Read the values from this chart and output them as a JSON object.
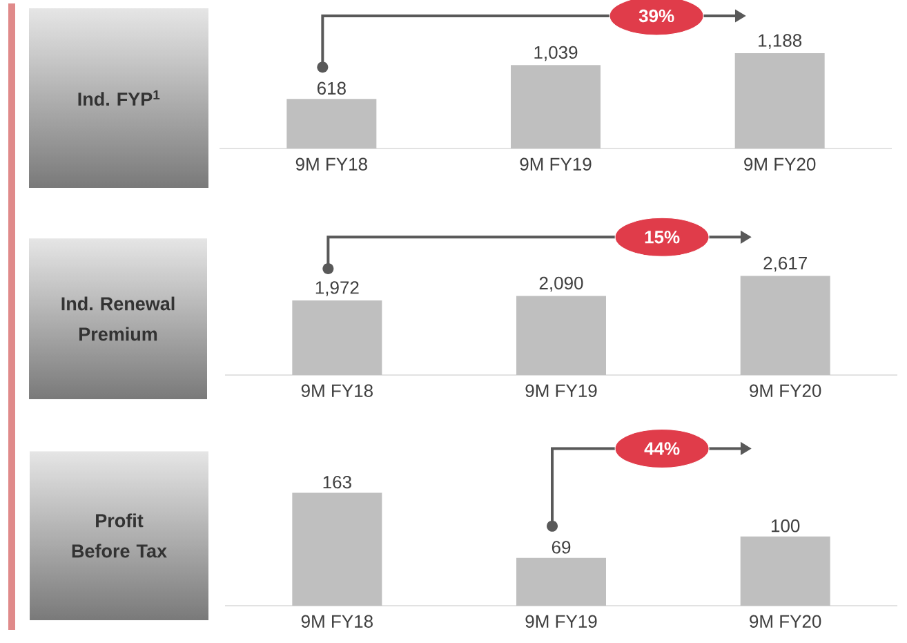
{
  "chart_data": [
    {
      "type": "bar",
      "title": "Ind. FYP$^{1}$",
      "categories": [
        "9M FY18",
        "9M FY19",
        "9M FY20"
      ],
      "values": [
        618,
        1039,
        1188
      ],
      "value_labels": [
        "618",
        "1,039",
        "1,188"
      ],
      "color": "#bfbfbf",
      "annotations": [
        "39%"
      ]
    },
    {
      "type": "bar",
      "title": "Ind. Renewal Premium",
      "categories": [
        "9M FY18",
        "9M FY19",
        "9M FY20"
      ],
      "values": [
        1972,
        2090,
        2617
      ],
      "value_labels": [
        "1,972",
        "2,090",
        "2,617"
      ],
      "color": "#bfbfbf",
      "annotations": [
        "15%"
      ]
    },
    {
      "type": "bar",
      "title": "Profit Before Tax",
      "categories": [
        "9M FY18",
        "9M FY19",
        "9M FY20"
      ],
      "values": [
        163,
        69,
        100
      ],
      "value_labels": [
        "163",
        "69",
        "100"
      ],
      "color": "#bfbfbf",
      "annotations": [
        "44%"
      ]
    }
  ]
}
